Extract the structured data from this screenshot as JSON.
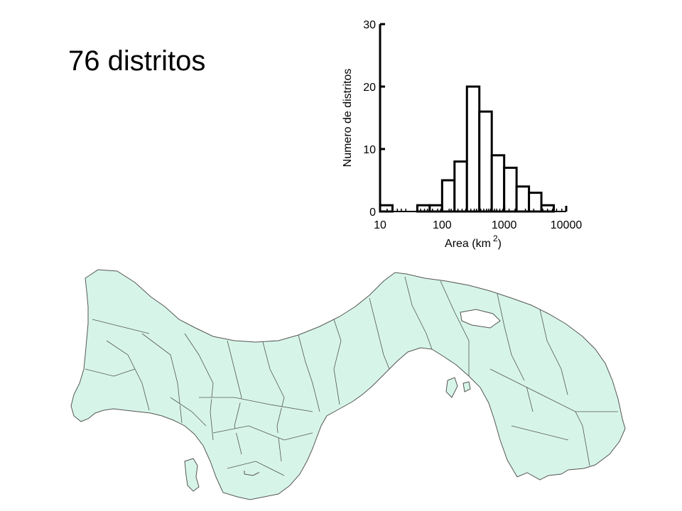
{
  "slide": {
    "title": "76 distritos"
  },
  "chart_data": {
    "type": "bar",
    "title": "",
    "xlabel": "Area (km",
    "xlabel_superscript": "2",
    "xlabel_close": ")",
    "ylabel": "Numero de distritos",
    "x_scale": "log",
    "xlim": [
      10,
      10000
    ],
    "ylim": [
      0,
      30
    ],
    "x_ticks": [
      "10",
      "100",
      "1000",
      "10000"
    ],
    "y_ticks": [
      "0",
      "10",
      "20",
      "30"
    ],
    "bins": [
      {
        "x0": 10,
        "x1": 15.85,
        "count": 1
      },
      {
        "x0": 15.85,
        "x1": 25.12,
        "count": 0
      },
      {
        "x0": 25.12,
        "x1": 39.81,
        "count": 0
      },
      {
        "x0": 39.81,
        "x1": 63.1,
        "count": 1
      },
      {
        "x0": 63.1,
        "x1": 100,
        "count": 1
      },
      {
        "x0": 100,
        "x1": 158.5,
        "count": 5
      },
      {
        "x0": 158.5,
        "x1": 251.2,
        "count": 8
      },
      {
        "x0": 251.2,
        "x1": 398.1,
        "count": 20
      },
      {
        "x0": 398.1,
        "x1": 631,
        "count": 16
      },
      {
        "x0": 631,
        "x1": 1000,
        "count": 9
      },
      {
        "x0": 1000,
        "x1": 1585,
        "count": 7
      },
      {
        "x0": 1585,
        "x1": 2512,
        "count": 4
      },
      {
        "x0": 2512,
        "x1": 3981,
        "count": 3
      },
      {
        "x0": 3981,
        "x1": 6310,
        "count": 1
      }
    ],
    "grid": false,
    "bar_fill": "#ffffff",
    "bar_stroke": "#000000"
  },
  "map": {
    "fill": "#d6f5e8",
    "stroke": "#555555"
  }
}
